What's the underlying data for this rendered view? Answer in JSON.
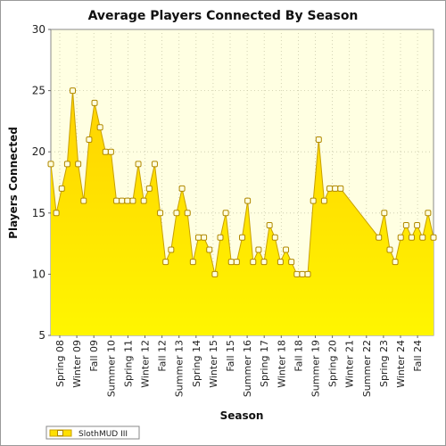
{
  "chart_data": {
    "type": "area",
    "title": "Average Players Connected By Season",
    "xlabel": "Season",
    "ylabel": "Players Connected",
    "ylim": [
      5,
      30
    ],
    "yticks": [
      5,
      10,
      15,
      20,
      25,
      30
    ],
    "grid": true,
    "legend_position": "bottom-left",
    "x_tick_labels": [
      "Spring 08",
      "Winter 09",
      "Fall 09",
      "Summer 10",
      "Spring 11",
      "Winter 12",
      "Fall 12",
      "Summer 13",
      "Spring 14",
      "Winter 15",
      "Fall 15",
      "Summer 16",
      "Spring 17",
      "Winter 18",
      "Fall 18",
      "Summer 19",
      "Spring 20",
      "Winter 21",
      "Summer 22",
      "Spring 23",
      "Winter 24",
      "Fall 24"
    ],
    "colors": {
      "fill": "#ffe000",
      "line": "#c8a000",
      "plot_bg": "#ffffe2",
      "marker": "#ffffe0"
    },
    "series": [
      {
        "name": "SlothMUD III",
        "values": [
          19,
          15,
          17,
          19,
          25,
          19,
          16,
          21,
          24,
          22,
          20,
          20,
          16,
          16,
          16,
          16,
          19,
          16,
          17,
          19,
          15,
          11,
          12,
          15,
          17,
          15,
          11,
          13,
          13,
          12,
          10,
          13,
          15,
          11,
          11,
          13,
          16,
          11,
          12,
          11,
          14,
          13,
          11,
          12,
          11,
          10,
          10,
          10,
          16,
          21,
          16,
          17,
          17,
          17,
          null,
          null,
          null,
          null,
          null,
          null,
          13,
          15,
          12,
          11,
          13,
          14,
          13,
          14,
          13,
          15,
          13
        ]
      }
    ]
  }
}
